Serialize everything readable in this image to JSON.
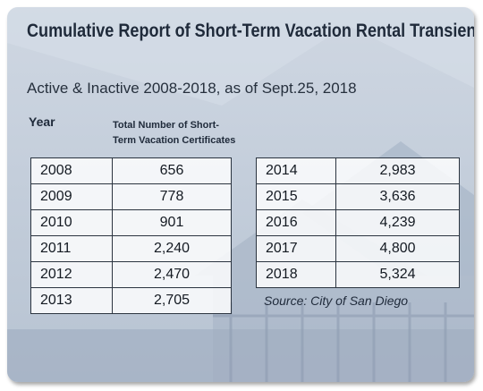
{
  "chart_data": {
    "type": "table",
    "title": "Cumulative Report of Short-Term Vacation Rental Transient Occupancy Tax (TOT) Registration Certificates in San Diego",
    "subtitle": "Active & Inactive 2008-2018, as of Sept.25, 2018",
    "columns": {
      "year": "Year",
      "count_line1": "Total Number of Short-",
      "count_line2": "Term Vacation Certificates"
    },
    "rows_left": [
      {
        "year": "2008",
        "value": "656"
      },
      {
        "year": "2009",
        "value": "778"
      },
      {
        "year": "2010",
        "value": "901"
      },
      {
        "year": "2011",
        "value": "2,240"
      },
      {
        "year": "2012",
        "value": "2,470"
      },
      {
        "year": "2013",
        "value": "2,705"
      }
    ],
    "rows_right": [
      {
        "year": "2014",
        "value": "2,983"
      },
      {
        "year": "2015",
        "value": "3,636"
      },
      {
        "year": "2016",
        "value": "4,239"
      },
      {
        "year": "2017",
        "value": "4,800"
      },
      {
        "year": "2018",
        "value": "5,324"
      }
    ],
    "source": "Source: City of San Diego"
  }
}
